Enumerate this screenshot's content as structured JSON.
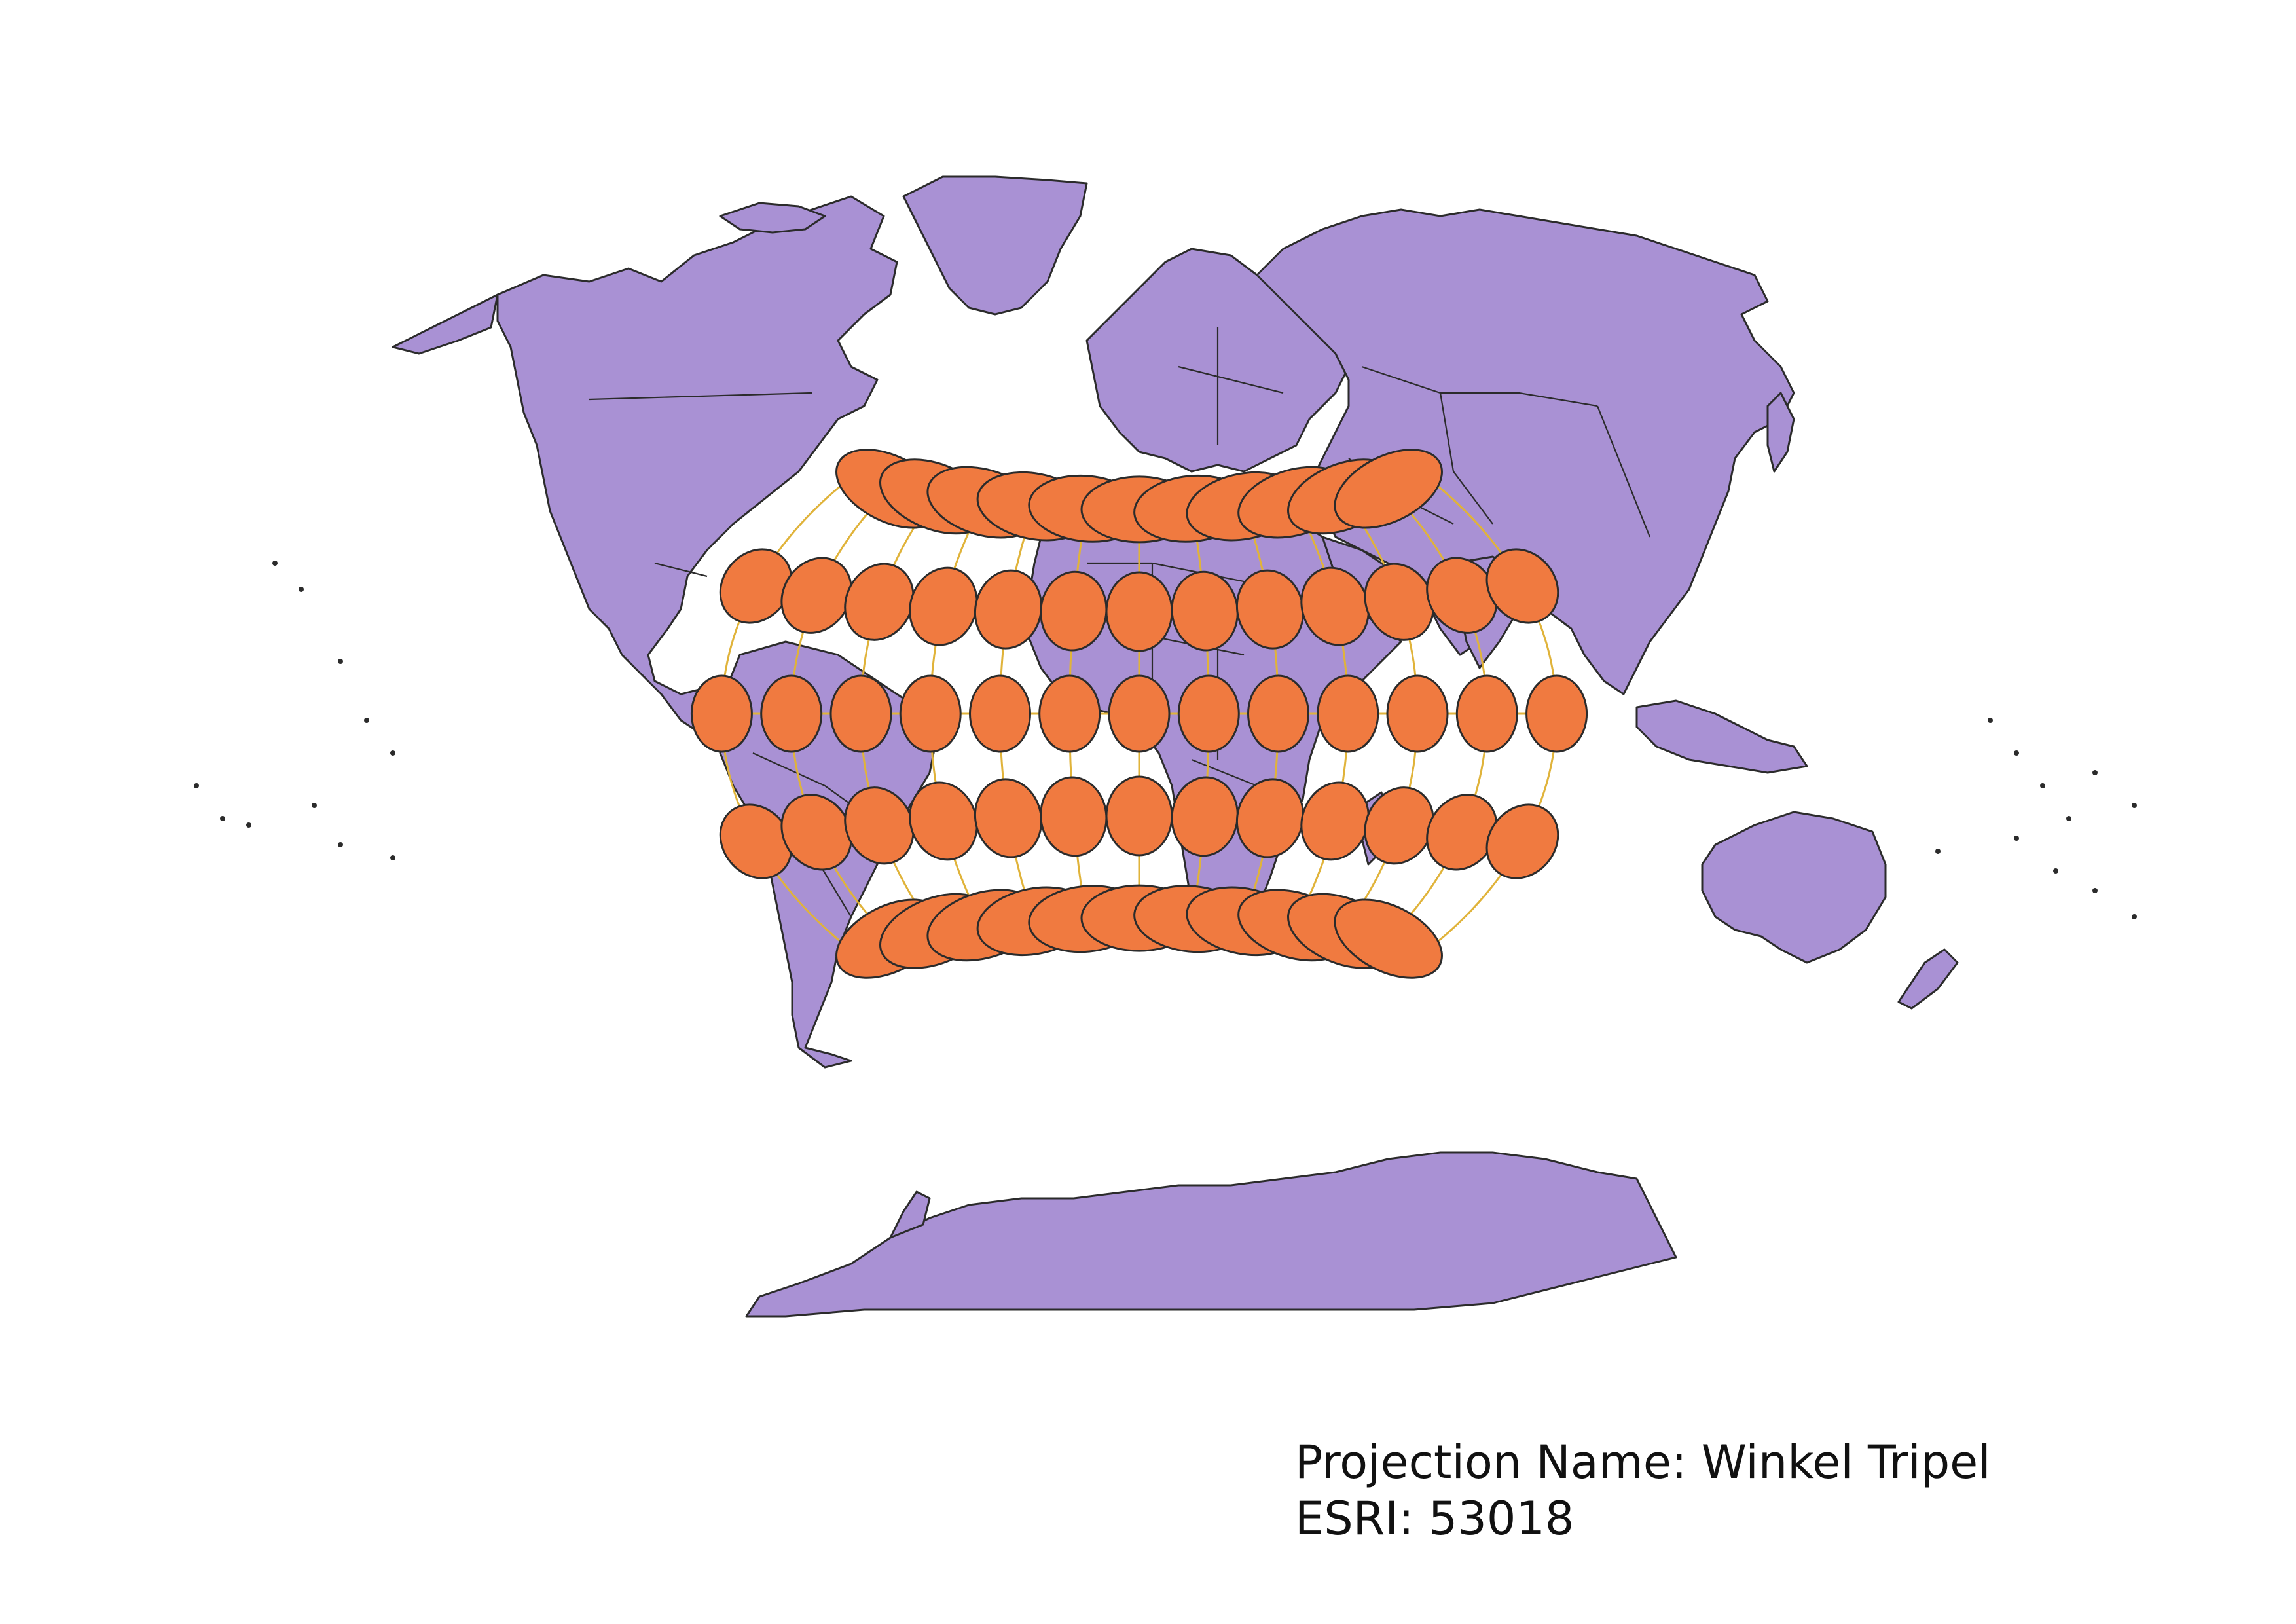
{
  "map": {
    "projection_label": "Projection Name: Winkel Tripel",
    "esri_label": "ESRI: 53018",
    "graticule_latitudes": [
      60,
      30,
      0,
      -30,
      -60
    ],
    "graticule_longitudes": [
      -150,
      -120,
      -90,
      -60,
      -30,
      0,
      30,
      60,
      90,
      120,
      150
    ],
    "colors": {
      "land": "#a991d4",
      "land_outline": "#2b2b2b",
      "graticule": "#e0b33a",
      "indicatrix": "#f07a40",
      "background": "#ffffff"
    },
    "layers": [
      "world-countries",
      "graticule",
      "tissot-indicatrix"
    ]
  }
}
